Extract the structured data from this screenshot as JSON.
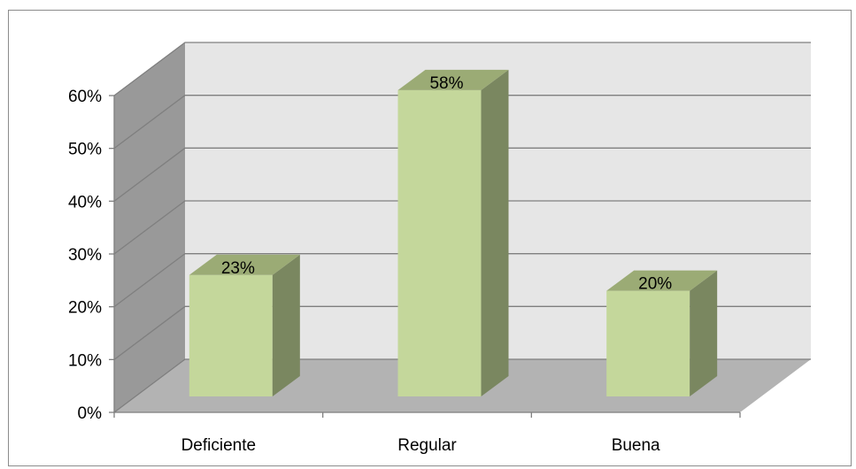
{
  "chart_data": {
    "type": "bar",
    "style": "3d-column",
    "categories": [
      "Deficiente",
      "Regular",
      "Buena"
    ],
    "values": [
      23,
      58,
      20
    ],
    "data_labels": [
      "23%",
      "58%",
      "20%"
    ],
    "y_tick_labels": [
      "0%",
      "10%",
      "20%",
      "30%",
      "40%",
      "50%",
      "60%"
    ],
    "ylim": [
      0,
      60
    ],
    "y_step": 10,
    "grid": true,
    "legend": "none",
    "title": "",
    "xlabel": "",
    "ylabel": "",
    "colors": {
      "bar_front": "#c4d79b",
      "bar_top": "#9bab75",
      "bar_side": "#7a8760",
      "back_wall": "#e6e6e6",
      "side_wall": "#999999",
      "floor": "#b3b3b3",
      "grid": "#7f7f7f",
      "axis": "#7f7f7f"
    }
  }
}
